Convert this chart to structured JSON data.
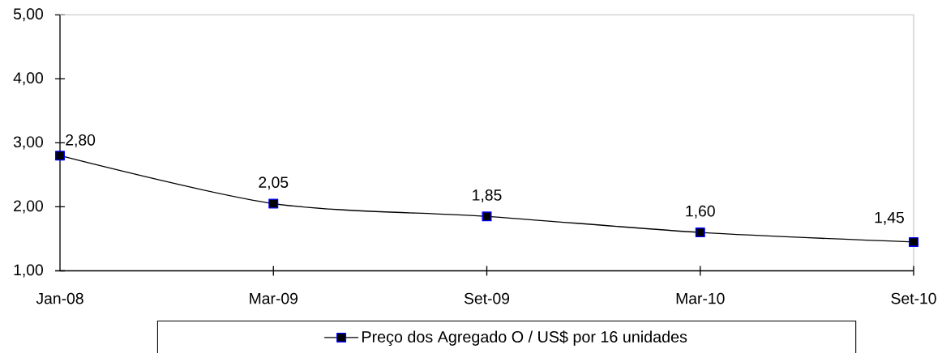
{
  "chart_data": {
    "type": "line",
    "categories": [
      "Jan-08",
      "Mar-09",
      "Set-09",
      "Mar-10",
      "Set-10"
    ],
    "series": [
      {
        "name": "Preço dos Agregado O / US$ por 16 unidades",
        "color": "#000000",
        "values": [
          2.8,
          2.05,
          1.85,
          1.6,
          1.45
        ],
        "value_labels": [
          "2,80",
          "2,05",
          "1,85",
          "1,60",
          "1,45"
        ]
      }
    ],
    "ylim": [
      1,
      5
    ],
    "yticks": [
      {
        "value": 1,
        "label": "1,00"
      },
      {
        "value": 2,
        "label": "2,00"
      },
      {
        "value": 3,
        "label": "3,00"
      },
      {
        "value": 4,
        "label": "4,00"
      },
      {
        "value": 5,
        "label": "5,00"
      }
    ],
    "legend": "bottom",
    "marker": "square",
    "line_style": "solid"
  }
}
